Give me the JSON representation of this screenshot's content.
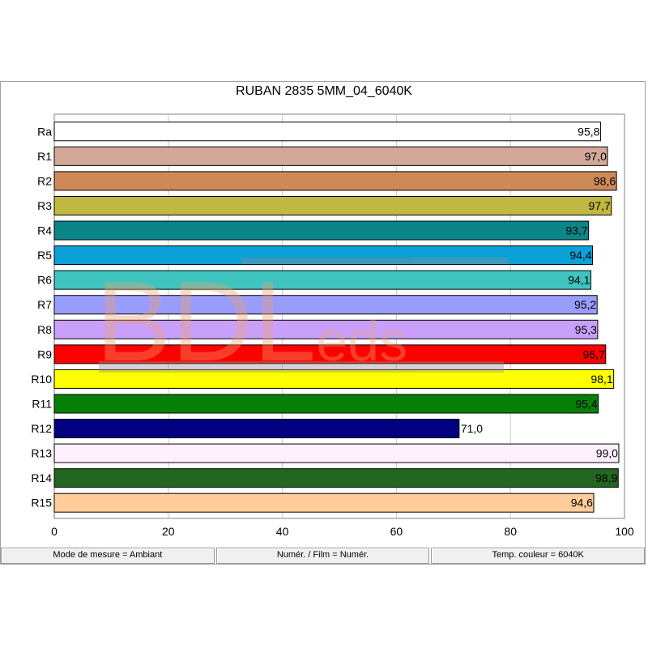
{
  "chart_data": {
    "type": "bar",
    "orientation": "horizontal",
    "title": "RUBAN 2835 5MM_04_6040K",
    "categories": [
      "Ra",
      "R1",
      "R2",
      "R3",
      "R4",
      "R5",
      "R6",
      "R7",
      "R8",
      "R9",
      "R10",
      "R11",
      "R12",
      "R13",
      "R14",
      "R15"
    ],
    "values": [
      95.8,
      97.0,
      98.6,
      97.7,
      93.7,
      94.4,
      94.1,
      95.2,
      95.3,
      96.7,
      98.1,
      95.4,
      71.0,
      99.0,
      98.9,
      94.6
    ],
    "value_labels": [
      "95,8",
      "97,0",
      "98,6",
      "97,7",
      "93,7",
      "94,4",
      "94,1",
      "95,2",
      "95,3",
      "96,7",
      "98,1",
      "95,4",
      "71,0",
      "99,0",
      "98,9",
      "94,6"
    ],
    "colors": [
      "#ffffff",
      "#d4a898",
      "#cd8a58",
      "#c0b840",
      "#0a8588",
      "#0aa0d8",
      "#40c4c0",
      "#9a9cfc",
      "#c8a0fc",
      "#ff0000",
      "#ffff00",
      "#088008",
      "#000080",
      "#fff0ff",
      "#226622",
      "#ffcc9a"
    ],
    "xlim": [
      0,
      100
    ],
    "x_ticks": [
      0,
      20,
      40,
      60,
      80,
      100
    ],
    "grid": true,
    "watermark": "BDLeds"
  },
  "status_bar": {
    "mode": "Mode de mesure = Ambiant",
    "film": "Numér. / Film = Numér.",
    "temp": "Temp. couleur = 6040K"
  }
}
